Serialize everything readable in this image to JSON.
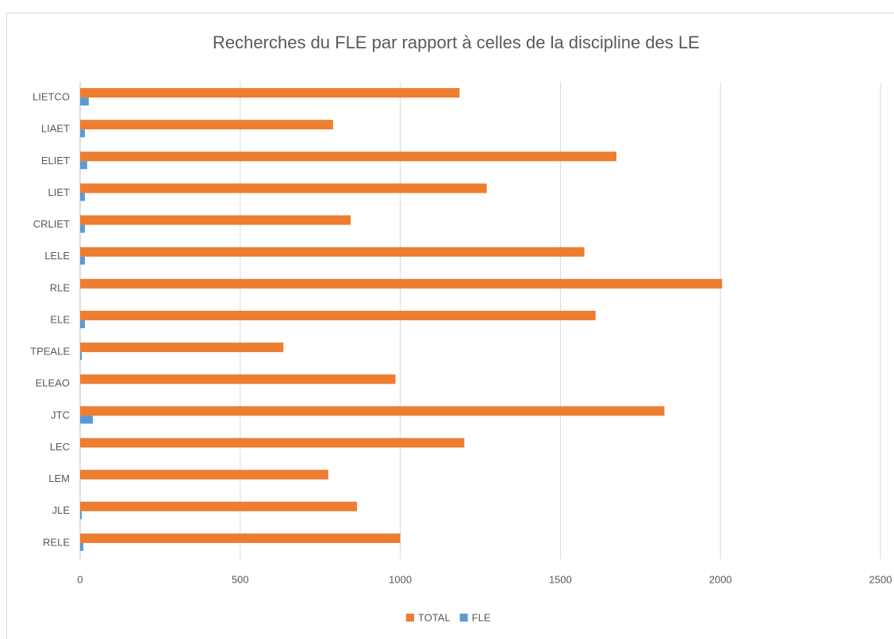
{
  "chart_data": {
    "type": "bar",
    "orientation": "horizontal",
    "title": "Recherches du FLE par rapport à celles de la discipline des LE",
    "categories": [
      "LIETCO",
      "LIAET",
      "ELIET",
      "LIET",
      "CRLIET",
      "LELE",
      "RLE",
      "ELE",
      "TPEALE",
      "ELEAO",
      "JTC",
      "LEC",
      "LEM",
      "JLE",
      "RELE"
    ],
    "series": [
      {
        "name": "TOTAL",
        "color": "#ed7d31",
        "values": [
          1185,
          790,
          1675,
          1270,
          845,
          1575,
          2005,
          1610,
          635,
          985,
          1825,
          1200,
          775,
          865,
          1000
        ]
      },
      {
        "name": "FLE",
        "color": "#5b9bd5",
        "values": [
          27,
          15,
          22,
          15,
          15,
          15,
          0,
          15,
          5,
          0,
          40,
          0,
          0,
          5,
          10
        ]
      }
    ],
    "xlim": [
      0,
      2500
    ],
    "xticks": [
      0,
      500,
      1000,
      1500,
      2000,
      2500
    ],
    "grid": true,
    "legend": "bottom"
  }
}
